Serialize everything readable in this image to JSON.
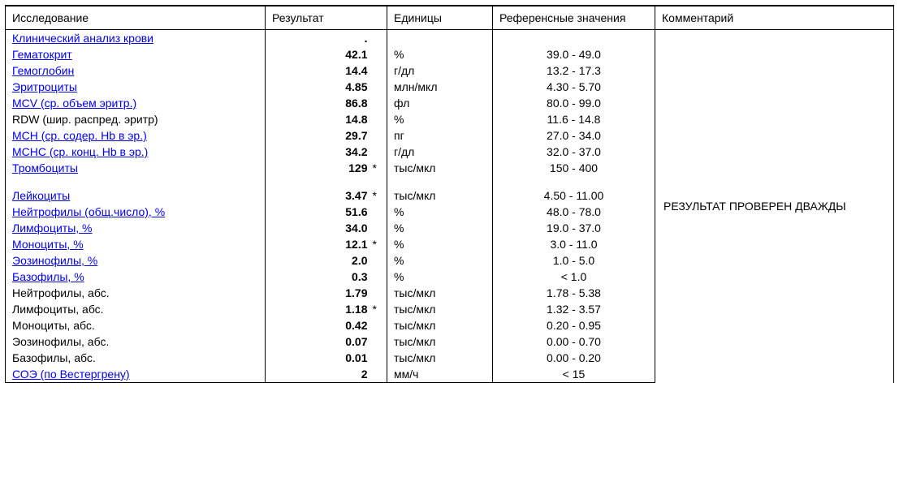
{
  "headers": {
    "name": "Исследование",
    "result": "Результат",
    "units": "Единицы",
    "reference": "Референсные значения",
    "comment": "Комментарий"
  },
  "comment": "РЕЗУЛЬТАТ ПРОВЕРЕН ДВАЖДЫ",
  "rows": [
    {
      "name": "Клинический анализ крови",
      "link": true,
      "result": ".",
      "flag": "",
      "units": "",
      "ref": ""
    },
    {
      "name": "Гематокрит",
      "link": true,
      "result": "42.1",
      "flag": "",
      "units": "%",
      "ref": "39.0 - 49.0"
    },
    {
      "name": "Гемоглобин",
      "link": true,
      "result": "14.4",
      "flag": "",
      "units": "г/дл",
      "ref": "13.2 - 17.3"
    },
    {
      "name": "Эритроциты",
      "link": true,
      "result": "4.85",
      "flag": "",
      "units": "млн/мкл",
      "ref": "4.30 - 5.70"
    },
    {
      "name": "MCV (ср. объем эритр.)",
      "link": true,
      "result": "86.8",
      "flag": "",
      "units": "фл",
      "ref": "80.0 - 99.0"
    },
    {
      "name": "RDW (шир. распред. эритр)",
      "link": false,
      "result": "14.8",
      "flag": "",
      "units": "%",
      "ref": "11.6 - 14.8"
    },
    {
      "name": "MCH (ср. содер. Hb в эр.)",
      "link": true,
      "result": "29.7",
      "flag": "",
      "units": "пг",
      "ref": "27.0 - 34.0"
    },
    {
      "name": "MCHC (ср. конц. Hb в эр.)",
      "link": true,
      "result": "34.2",
      "flag": "",
      "units": "г/дл",
      "ref": "32.0 - 37.0"
    },
    {
      "name": "Тромбоциты",
      "link": true,
      "result": "129",
      "flag": "*",
      "units": "тыс/мкл",
      "ref": "150 - 400"
    },
    {
      "spacer": true
    },
    {
      "name": "Лейкоциты",
      "link": true,
      "result": "3.47",
      "flag": "*",
      "units": "тыс/мкл",
      "ref": "4.50 - 11.00"
    },
    {
      "name": "Нейтрофилы (общ.число), %",
      "link": true,
      "result": "51.6",
      "flag": "",
      "units": "%",
      "ref": "48.0 - 78.0"
    },
    {
      "name": "Лимфоциты, %",
      "link": true,
      "result": "34.0",
      "flag": "",
      "units": "%",
      "ref": "19.0 - 37.0"
    },
    {
      "name": "Моноциты, %",
      "link": true,
      "result": "12.1",
      "flag": "*",
      "units": "%",
      "ref": "3.0 - 11.0"
    },
    {
      "name": "Эозинофилы, %",
      "link": true,
      "result": "2.0",
      "flag": "",
      "units": "%",
      "ref": "1.0 - 5.0"
    },
    {
      "name": "Базофилы, %",
      "link": true,
      "result": "0.3",
      "flag": "",
      "units": "%",
      "ref": "< 1.0"
    },
    {
      "name": "Нейтрофилы, абс.",
      "link": false,
      "result": "1.79",
      "flag": "",
      "units": "тыс/мкл",
      "ref": "1.78 - 5.38"
    },
    {
      "name": "Лимфоциты, абс.",
      "link": false,
      "result": "1.18",
      "flag": "*",
      "units": "тыс/мкл",
      "ref": "1.32 - 3.57"
    },
    {
      "name": "Моноциты, абс.",
      "link": false,
      "result": "0.42",
      "flag": "",
      "units": "тыс/мкл",
      "ref": "0.20 - 0.95"
    },
    {
      "name": "Эозинофилы, абс.",
      "link": false,
      "result": "0.07",
      "flag": "",
      "units": "тыс/мкл",
      "ref": "0.00 - 0.70"
    },
    {
      "name": "Базофилы, абс.",
      "link": false,
      "result": "0.01",
      "flag": "",
      "units": "тыс/мкл",
      "ref": "0.00 - 0.20"
    },
    {
      "name": "СОЭ (по Вестергрену)",
      "link": true,
      "result": "2",
      "flag": "",
      "units": "мм/ч",
      "ref": "< 15"
    }
  ],
  "colors": {
    "link": "#0000ee",
    "border": "#000000",
    "background": "#ffffff",
    "text": "#000000"
  },
  "layout": {
    "font_family": "Arial",
    "font_size_pt": 11,
    "result_bold": true
  }
}
